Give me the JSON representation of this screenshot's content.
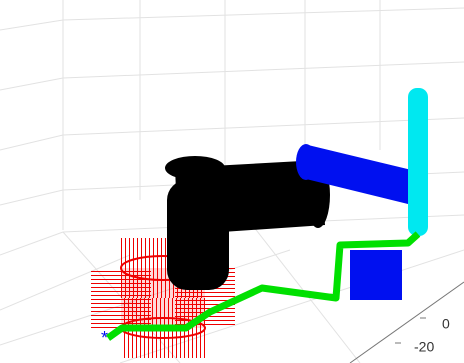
{
  "axis": {
    "ticks": [
      0,
      -20
    ]
  }
}
